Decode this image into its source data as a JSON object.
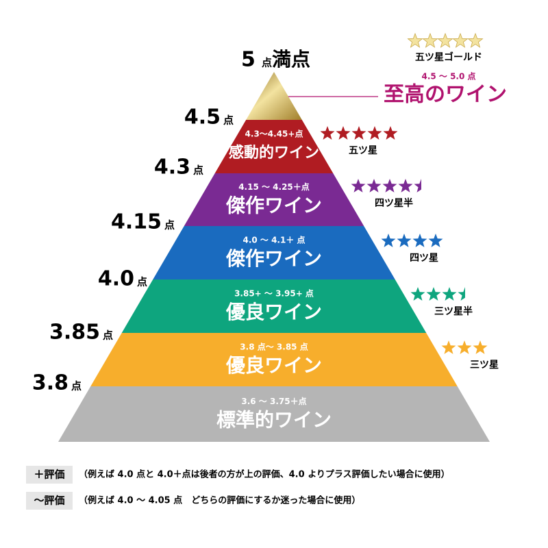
{
  "top": {
    "score": "5",
    "unit": "点",
    "label": "満点"
  },
  "gold": {
    "stars": 5,
    "star_label": "五ツ星ゴールド",
    "range": "4.5 ～ 5.0 点",
    "name": "至高のワイン",
    "name_color": "#b0126e",
    "range_color": "#b0126e"
  },
  "scores": [
    {
      "value": "4.5",
      "unit": "点"
    },
    {
      "value": "4.3",
      "unit": "点"
    },
    {
      "value": "4.15",
      "unit": "点"
    },
    {
      "value": "4.0",
      "unit": "点"
    },
    {
      "value": "3.85",
      "unit": "点"
    },
    {
      "value": "3.8",
      "unit": "点"
    }
  ],
  "tiers": [
    {
      "range": "4.3～4.45+点",
      "name": "感動的ワイン",
      "color": "#b01c22",
      "stars": 5,
      "star_color": "#b01c22",
      "star_label": "五ツ星"
    },
    {
      "range": "4.15 ～ 4.25＋点",
      "name": "傑作ワイン",
      "color": "#7a2a93",
      "stars": 4.5,
      "star_color": "#7a2a93",
      "star_label": "四ツ星半"
    },
    {
      "range": "4.0 ～ 4.1＋ 点",
      "name": "傑作ワイン",
      "color": "#1a6bbf",
      "stars": 4,
      "star_color": "#1a6bbf",
      "star_label": "四ツ星"
    },
    {
      "range": "3.85+ ～ 3.95+ 点",
      "name": "優良ワイン",
      "color": "#0ea57e",
      "stars": 3.5,
      "star_color": "#0ea57e",
      "star_label": "三ツ星半"
    },
    {
      "range": "3.8 点～ 3.85 点",
      "name": "優良ワイン",
      "color": "#f7ae2c",
      "stars": 3,
      "star_color": "#f7ae2c",
      "star_label": "三ツ星"
    },
    {
      "range": "3.6 ～ 3.75＋点",
      "name": "標準的ワイン",
      "color": "#b5b5b5"
    }
  ],
  "notes": [
    {
      "tag": "＋評価",
      "text": "（例えば 4.0 点と 4.0＋点は後者の方が上の評価、4.0 よりプラス評価したい場合に使用）"
    },
    {
      "tag": "～評価",
      "text": "（例えば 4.0 ～ 4.05 点　どちらの評価にするか迷った場合に使用）"
    }
  ]
}
